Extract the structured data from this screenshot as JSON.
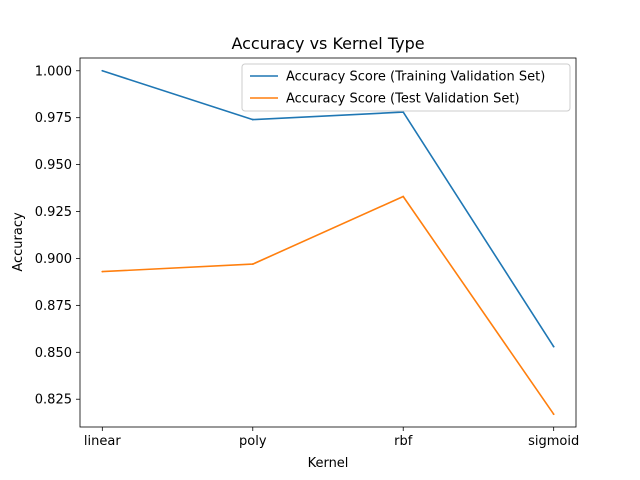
{
  "chart_data": {
    "type": "line",
    "title": "Accuracy vs Kernel Type",
    "xlabel": "Kernel",
    "ylabel": "Accuracy",
    "categories": [
      "linear",
      "poly",
      "rbf",
      "sigmoid"
    ],
    "series": [
      {
        "name": "Accuracy Score (Training Validation Set)",
        "color": "#1f77b4",
        "values": [
          1.0,
          0.974,
          0.978,
          0.853
        ]
      },
      {
        "name": "Accuracy Score (Test Validation Set)",
        "color": "#ff7f0e",
        "values": [
          0.893,
          0.897,
          0.933,
          0.817
        ]
      }
    ],
    "ylim": [
      0.8102,
      1.0068
    ],
    "yticks": [
      0.825,
      0.85,
      0.875,
      0.9,
      0.925,
      0.95,
      0.975,
      1.0
    ],
    "ytick_labels": [
      "0.825",
      "0.850",
      "0.875",
      "0.900",
      "0.925",
      "0.950",
      "0.975",
      "1.000"
    ],
    "grid": false,
    "legend_position": "upper-right"
  }
}
